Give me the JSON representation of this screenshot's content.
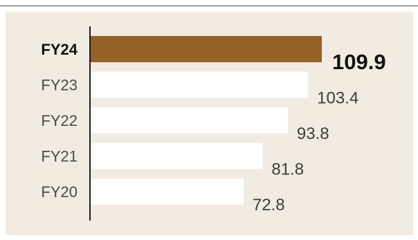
{
  "chart_data": {
    "type": "bar",
    "orientation": "horizontal",
    "categories": [
      "FY24",
      "FY23",
      "FY22",
      "FY21",
      "FY20"
    ],
    "values": [
      109.9,
      103.4,
      93.8,
      81.8,
      72.8
    ],
    "value_labels": [
      "109.9",
      "103.4",
      "93.8",
      "81.8",
      "72.8"
    ],
    "highlight_index": 0,
    "title": "",
    "xlabel": "",
    "ylabel": "",
    "xlim": [
      0,
      115
    ],
    "grid": false,
    "legend": "none",
    "colors": {
      "highlight": "#946228",
      "bar": "#ffffff",
      "background": "#f1ebe2",
      "axis": "#1a1a1a"
    }
  }
}
